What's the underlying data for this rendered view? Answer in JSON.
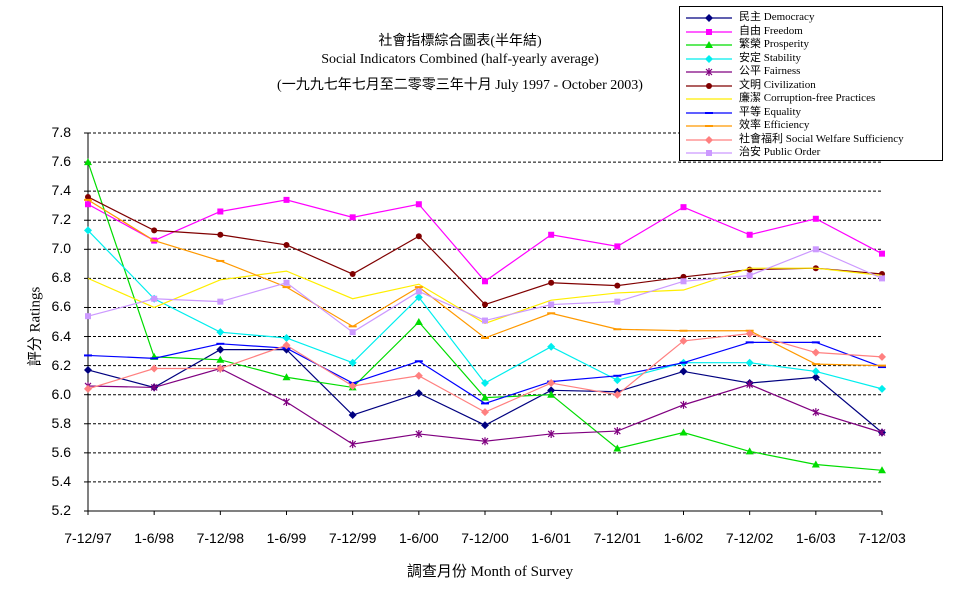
{
  "chart_data": {
    "type": "line",
    "title": "社會指標綜合圖表(半年結)",
    "subtitle": "Social Indicators Combined (half-yearly average)",
    "period": "(一九九七年七月至二零零三年十月 July 1997 - October 2003)",
    "xlabel": "調查月份 Month of Survey",
    "ylabel": "評分 Ratings",
    "ylim": [
      5.2,
      7.8
    ],
    "yticks": [
      "7.8",
      "7.6",
      "7.4",
      "7.2",
      "7.0",
      "6.8",
      "6.6",
      "6.4",
      "6.2",
      "6.0",
      "5.8",
      "5.6",
      "5.4",
      "5.2"
    ],
    "categories": [
      "7-12/97",
      "1-6/98",
      "7-12/98",
      "1-6/99",
      "7-12/99",
      "1-6/00",
      "7-12/00",
      "1-6/01",
      "7-12/01",
      "1-6/02",
      "7-12/02",
      "1-6/03",
      "7-12/03"
    ],
    "grid": true,
    "legend_position": "top-right",
    "series": [
      {
        "name": "民主 Democracy",
        "color": "#000080",
        "marker": "diamond",
        "values": [
          6.17,
          6.05,
          6.31,
          6.31,
          5.86,
          6.01,
          5.79,
          6.03,
          6.02,
          6.16,
          6.08,
          6.12,
          5.74
        ]
      },
      {
        "name": "自由 Freedom",
        "color": "#ff00ff",
        "marker": "square",
        "values": [
          7.31,
          7.06,
          7.26,
          7.34,
          7.22,
          7.31,
          6.78,
          7.1,
          7.02,
          7.29,
          7.1,
          7.21,
          6.97
        ]
      },
      {
        "name": "繁榮 Prosperity",
        "color": "#00dd00",
        "marker": "triangle",
        "values": [
          7.6,
          6.26,
          6.24,
          6.12,
          6.05,
          6.5,
          5.98,
          6.0,
          5.63,
          5.74,
          5.61,
          5.52,
          5.48
        ]
      },
      {
        "name": "安定 Stability",
        "color": "#00eeee",
        "marker": "diamond",
        "values": [
          7.13,
          6.66,
          6.43,
          6.39,
          6.22,
          6.67,
          6.08,
          6.33,
          6.1,
          6.22,
          6.22,
          6.16,
          6.04
        ]
      },
      {
        "name": "公平 Fairness",
        "color": "#800080",
        "marker": "star",
        "values": [
          6.06,
          6.05,
          6.18,
          5.95,
          5.66,
          5.73,
          5.68,
          5.73,
          5.75,
          5.93,
          6.07,
          5.88,
          5.74
        ]
      },
      {
        "name": "文明 Civilization",
        "color": "#800000",
        "marker": "circle",
        "values": [
          7.36,
          7.13,
          7.1,
          7.03,
          6.83,
          7.09,
          6.62,
          6.77,
          6.75,
          6.81,
          6.86,
          6.87,
          6.83
        ]
      },
      {
        "name": "廉潔 Corruption-free Practices",
        "color": "#ffee00",
        "marker": "none",
        "values": [
          6.8,
          6.6,
          6.79,
          6.85,
          6.66,
          6.76,
          6.49,
          6.65,
          6.7,
          6.72,
          6.87,
          6.87,
          6.82
        ]
      },
      {
        "name": "平等 Equality",
        "color": "#0000ff",
        "marker": "dash",
        "values": [
          6.27,
          6.25,
          6.35,
          6.32,
          6.08,
          6.23,
          5.94,
          6.09,
          6.13,
          6.22,
          6.36,
          6.36,
          6.19
        ]
      },
      {
        "name": "效率 Efficiency",
        "color": "#ff9900",
        "marker": "dash",
        "values": [
          7.34,
          7.06,
          6.92,
          6.74,
          6.47,
          6.74,
          6.39,
          6.56,
          6.45,
          6.44,
          6.44,
          6.21,
          6.2
        ]
      },
      {
        "name": "社會福利 Social Welfare Sufficiency",
        "color": "#ff8080",
        "marker": "diamond",
        "values": [
          6.04,
          6.18,
          6.18,
          6.34,
          6.06,
          6.13,
          5.88,
          6.08,
          6.0,
          6.37,
          6.42,
          6.29,
          6.26
        ]
      },
      {
        "name": "治安 Public Order",
        "color": "#cc99ff",
        "marker": "square",
        "values": [
          6.54,
          6.66,
          6.64,
          6.77,
          6.43,
          6.71,
          6.51,
          6.62,
          6.64,
          6.78,
          6.82,
          7.0,
          6.8
        ]
      }
    ]
  }
}
